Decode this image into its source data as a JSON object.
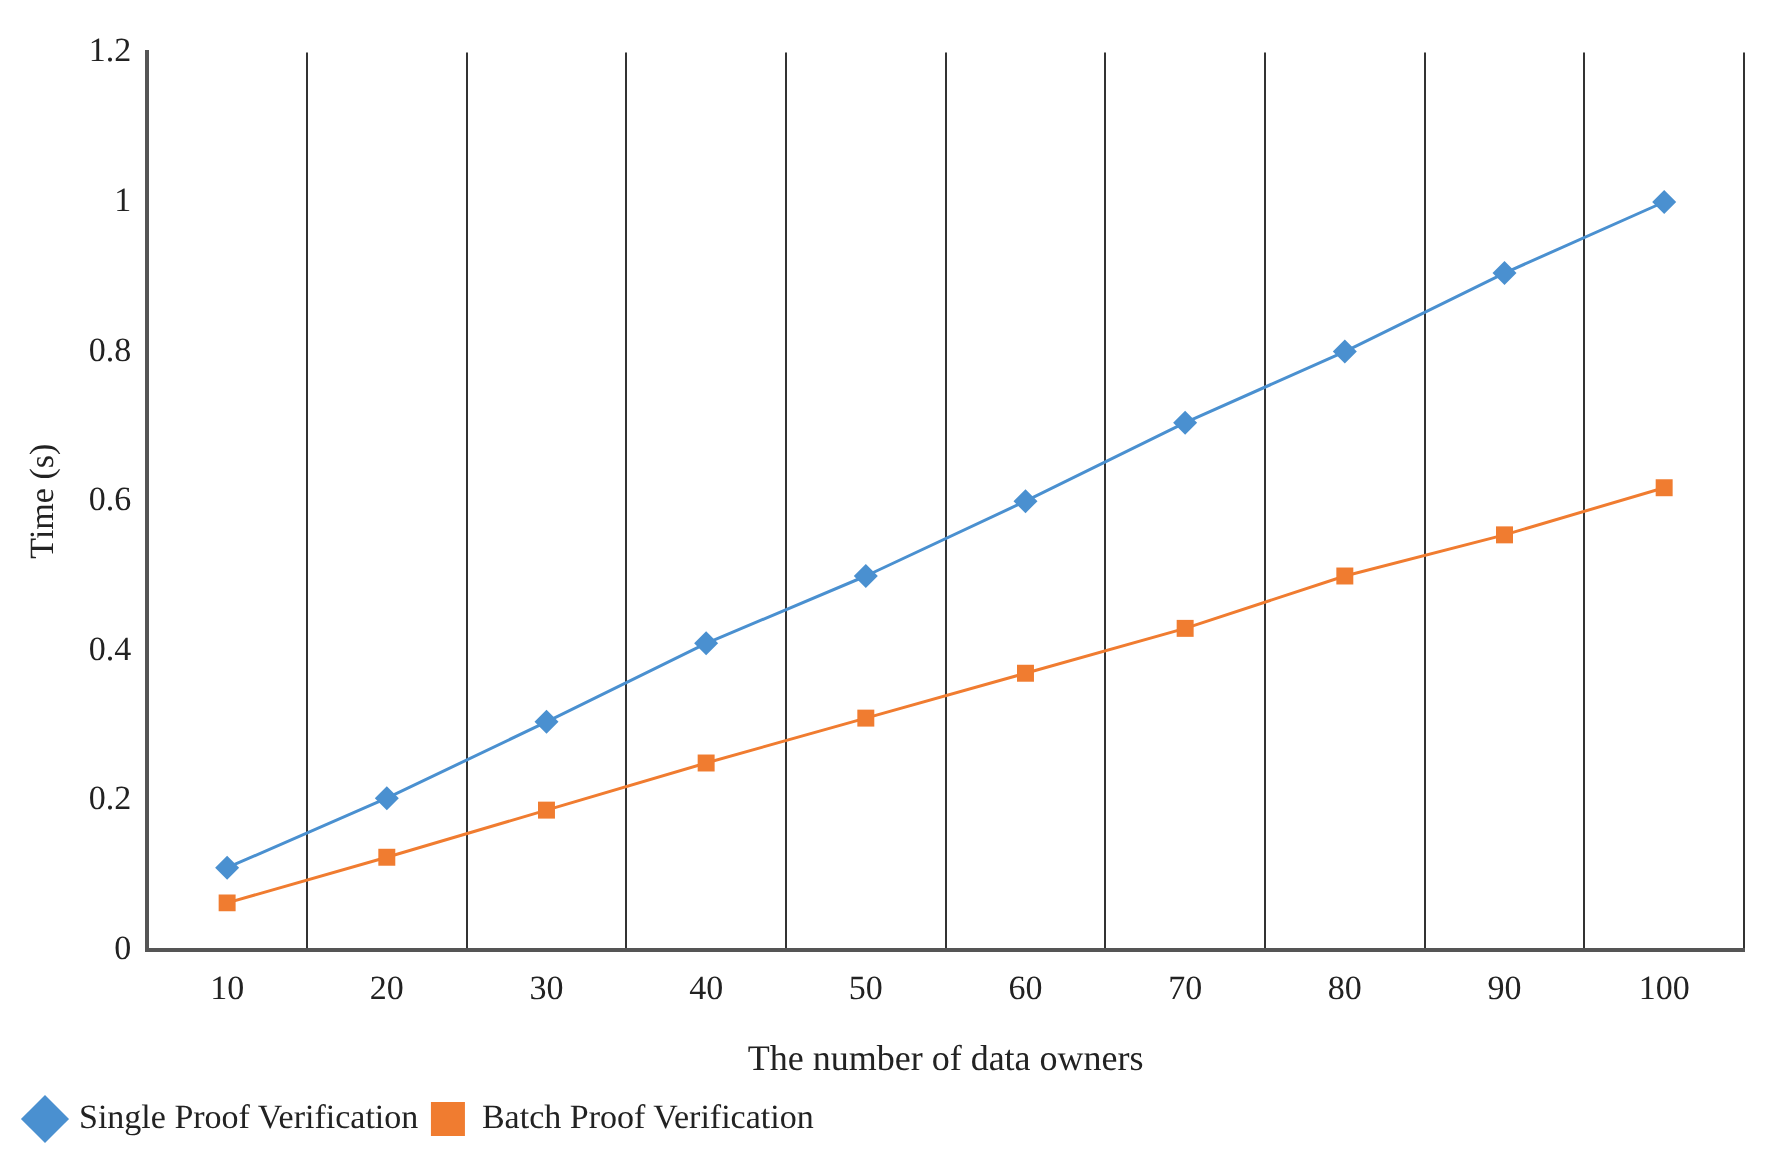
{
  "chart_data": {
    "type": "line",
    "xlabel": "The number of data owners",
    "ylabel": "Time (s)",
    "categories": [
      "10",
      "20",
      "30",
      "40",
      "50",
      "60",
      "70",
      "80",
      "90",
      "100"
    ],
    "series": [
      {
        "name": "Single Proof Verification",
        "color": "#4a90d0",
        "marker": "diamond",
        "values": [
          0.11,
          0.203,
          0.305,
          0.41,
          0.5,
          0.6,
          0.705,
          0.8,
          0.905,
          1.0
        ]
      },
      {
        "name": "Batch Proof Verification",
        "color": "#f07c30",
        "marker": "square",
        "values": [
          0.063,
          0.124,
          0.187,
          0.25,
          0.31,
          0.37,
          0.43,
          0.5,
          0.555,
          0.618
        ]
      }
    ],
    "ylim": [
      0,
      1.2
    ],
    "yticks": [
      0,
      0.2,
      0.4,
      0.6,
      0.8,
      1,
      1.2
    ],
    "grid": "x",
    "legend": "bottom left",
    "line_style": "solid"
  }
}
